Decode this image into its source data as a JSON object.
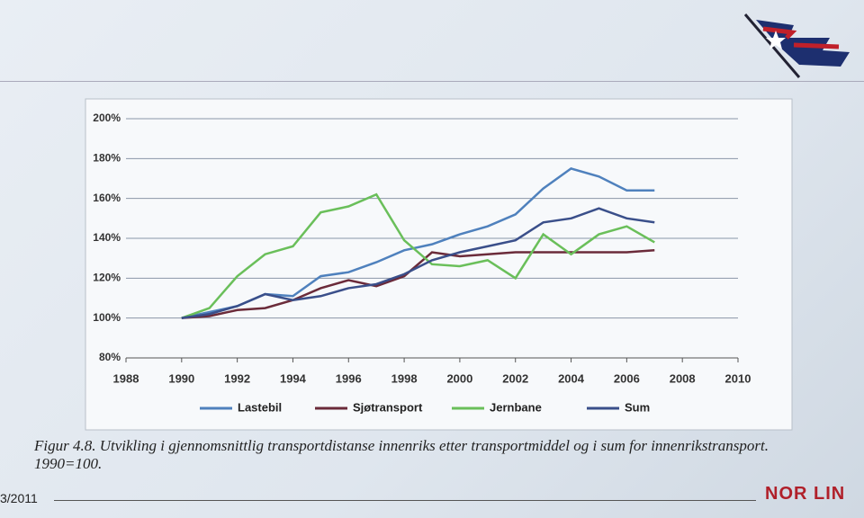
{
  "chart_data": {
    "type": "line",
    "x": [
      1990,
      1991,
      1992,
      1993,
      1994,
      1995,
      1996,
      1997,
      1998,
      1999,
      2000,
      2001,
      2002,
      2003,
      2004,
      2005,
      2006,
      2007
    ],
    "series": [
      {
        "name": "Lastebil",
        "color": "#4f81bd",
        "values": [
          100,
          103,
          106,
          112,
          111,
          121,
          123,
          128,
          134,
          137,
          142,
          146,
          152,
          165,
          175,
          171,
          164,
          164
        ]
      },
      {
        "name": "Sjøtransport",
        "color": "#6b2b3a",
        "values": [
          100,
          101,
          104,
          105,
          109,
          115,
          119,
          116,
          121,
          133,
          131,
          132,
          133,
          133,
          133,
          133,
          133,
          134
        ]
      },
      {
        "name": "Jernbane",
        "color": "#6abf5a",
        "values": [
          100,
          105,
          121,
          132,
          136,
          153,
          156,
          162,
          139,
          127,
          126,
          129,
          120,
          142,
          132,
          142,
          146,
          138
        ]
      },
      {
        "name": "Sum",
        "color": "#3a4f8a",
        "values": [
          100,
          102,
          106,
          112,
          109,
          111,
          115,
          117,
          122,
          129,
          133,
          136,
          139,
          148,
          150,
          155,
          150,
          148
        ]
      }
    ],
    "xlim": [
      1988,
      2010
    ],
    "xticks": [
      1988,
      1990,
      1992,
      1994,
      1996,
      1998,
      2000,
      2002,
      2004,
      2006,
      2008,
      2010
    ],
    "ylim": [
      80,
      200
    ],
    "yticks": [
      {
        "value": 80,
        "label": "80%"
      },
      {
        "value": 100,
        "label": "100%"
      },
      {
        "value": 120,
        "label": "120%"
      },
      {
        "value": 140,
        "label": "140%"
      },
      {
        "value": 160,
        "label": "160%"
      },
      {
        "value": 180,
        "label": "180%"
      },
      {
        "value": 200,
        "label": "200%"
      }
    ],
    "grid": true,
    "legend": "bottom"
  },
  "caption": "Figur 4.8. Utvikling i gjennomsnittlig transportdistanse innenriks etter transportmiddel og i sum for innenrikstransport. 1990=100.",
  "footer": {
    "date": "3/2011",
    "logo": "NOR LIN"
  }
}
